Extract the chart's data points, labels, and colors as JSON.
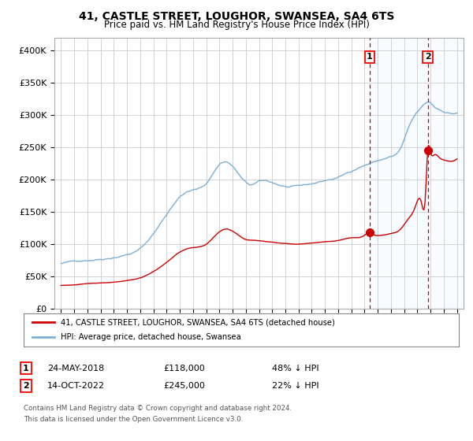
{
  "title": "41, CASTLE STREET, LOUGHOR, SWANSEA, SA4 6TS",
  "subtitle": "Price paid vs. HM Land Registry's House Price Index (HPI)",
  "legend_line1": "41, CASTLE STREET, LOUGHOR, SWANSEA, SA4 6TS (detached house)",
  "legend_line2": "HPI: Average price, detached house, Swansea",
  "sale1_date": "24-MAY-2018",
  "sale1_price": 118000,
  "sale1_label": "48% ↓ HPI",
  "sale2_date": "14-OCT-2022",
  "sale2_price": 245000,
  "sale2_label": "22% ↓ HPI",
  "footnote1": "Contains HM Land Registry data © Crown copyright and database right 2024.",
  "footnote2": "This data is licensed under the Open Government Licence v3.0.",
  "hpi_color": "#7bafd4",
  "price_color": "#cc0000",
  "marker_color": "#cc0000",
  "vline_color": "#cc0000",
  "shade_color": "#ddeeff",
  "background_color": "#ffffff",
  "grid_color": "#cccccc",
  "ylim": [
    0,
    420000
  ],
  "yticks": [
    0,
    50000,
    100000,
    150000,
    200000,
    250000,
    300000,
    350000,
    400000
  ],
  "sale1_x": 2018.388,
  "sale2_x": 2022.787,
  "xmin": 1994.5,
  "xmax": 2025.5
}
